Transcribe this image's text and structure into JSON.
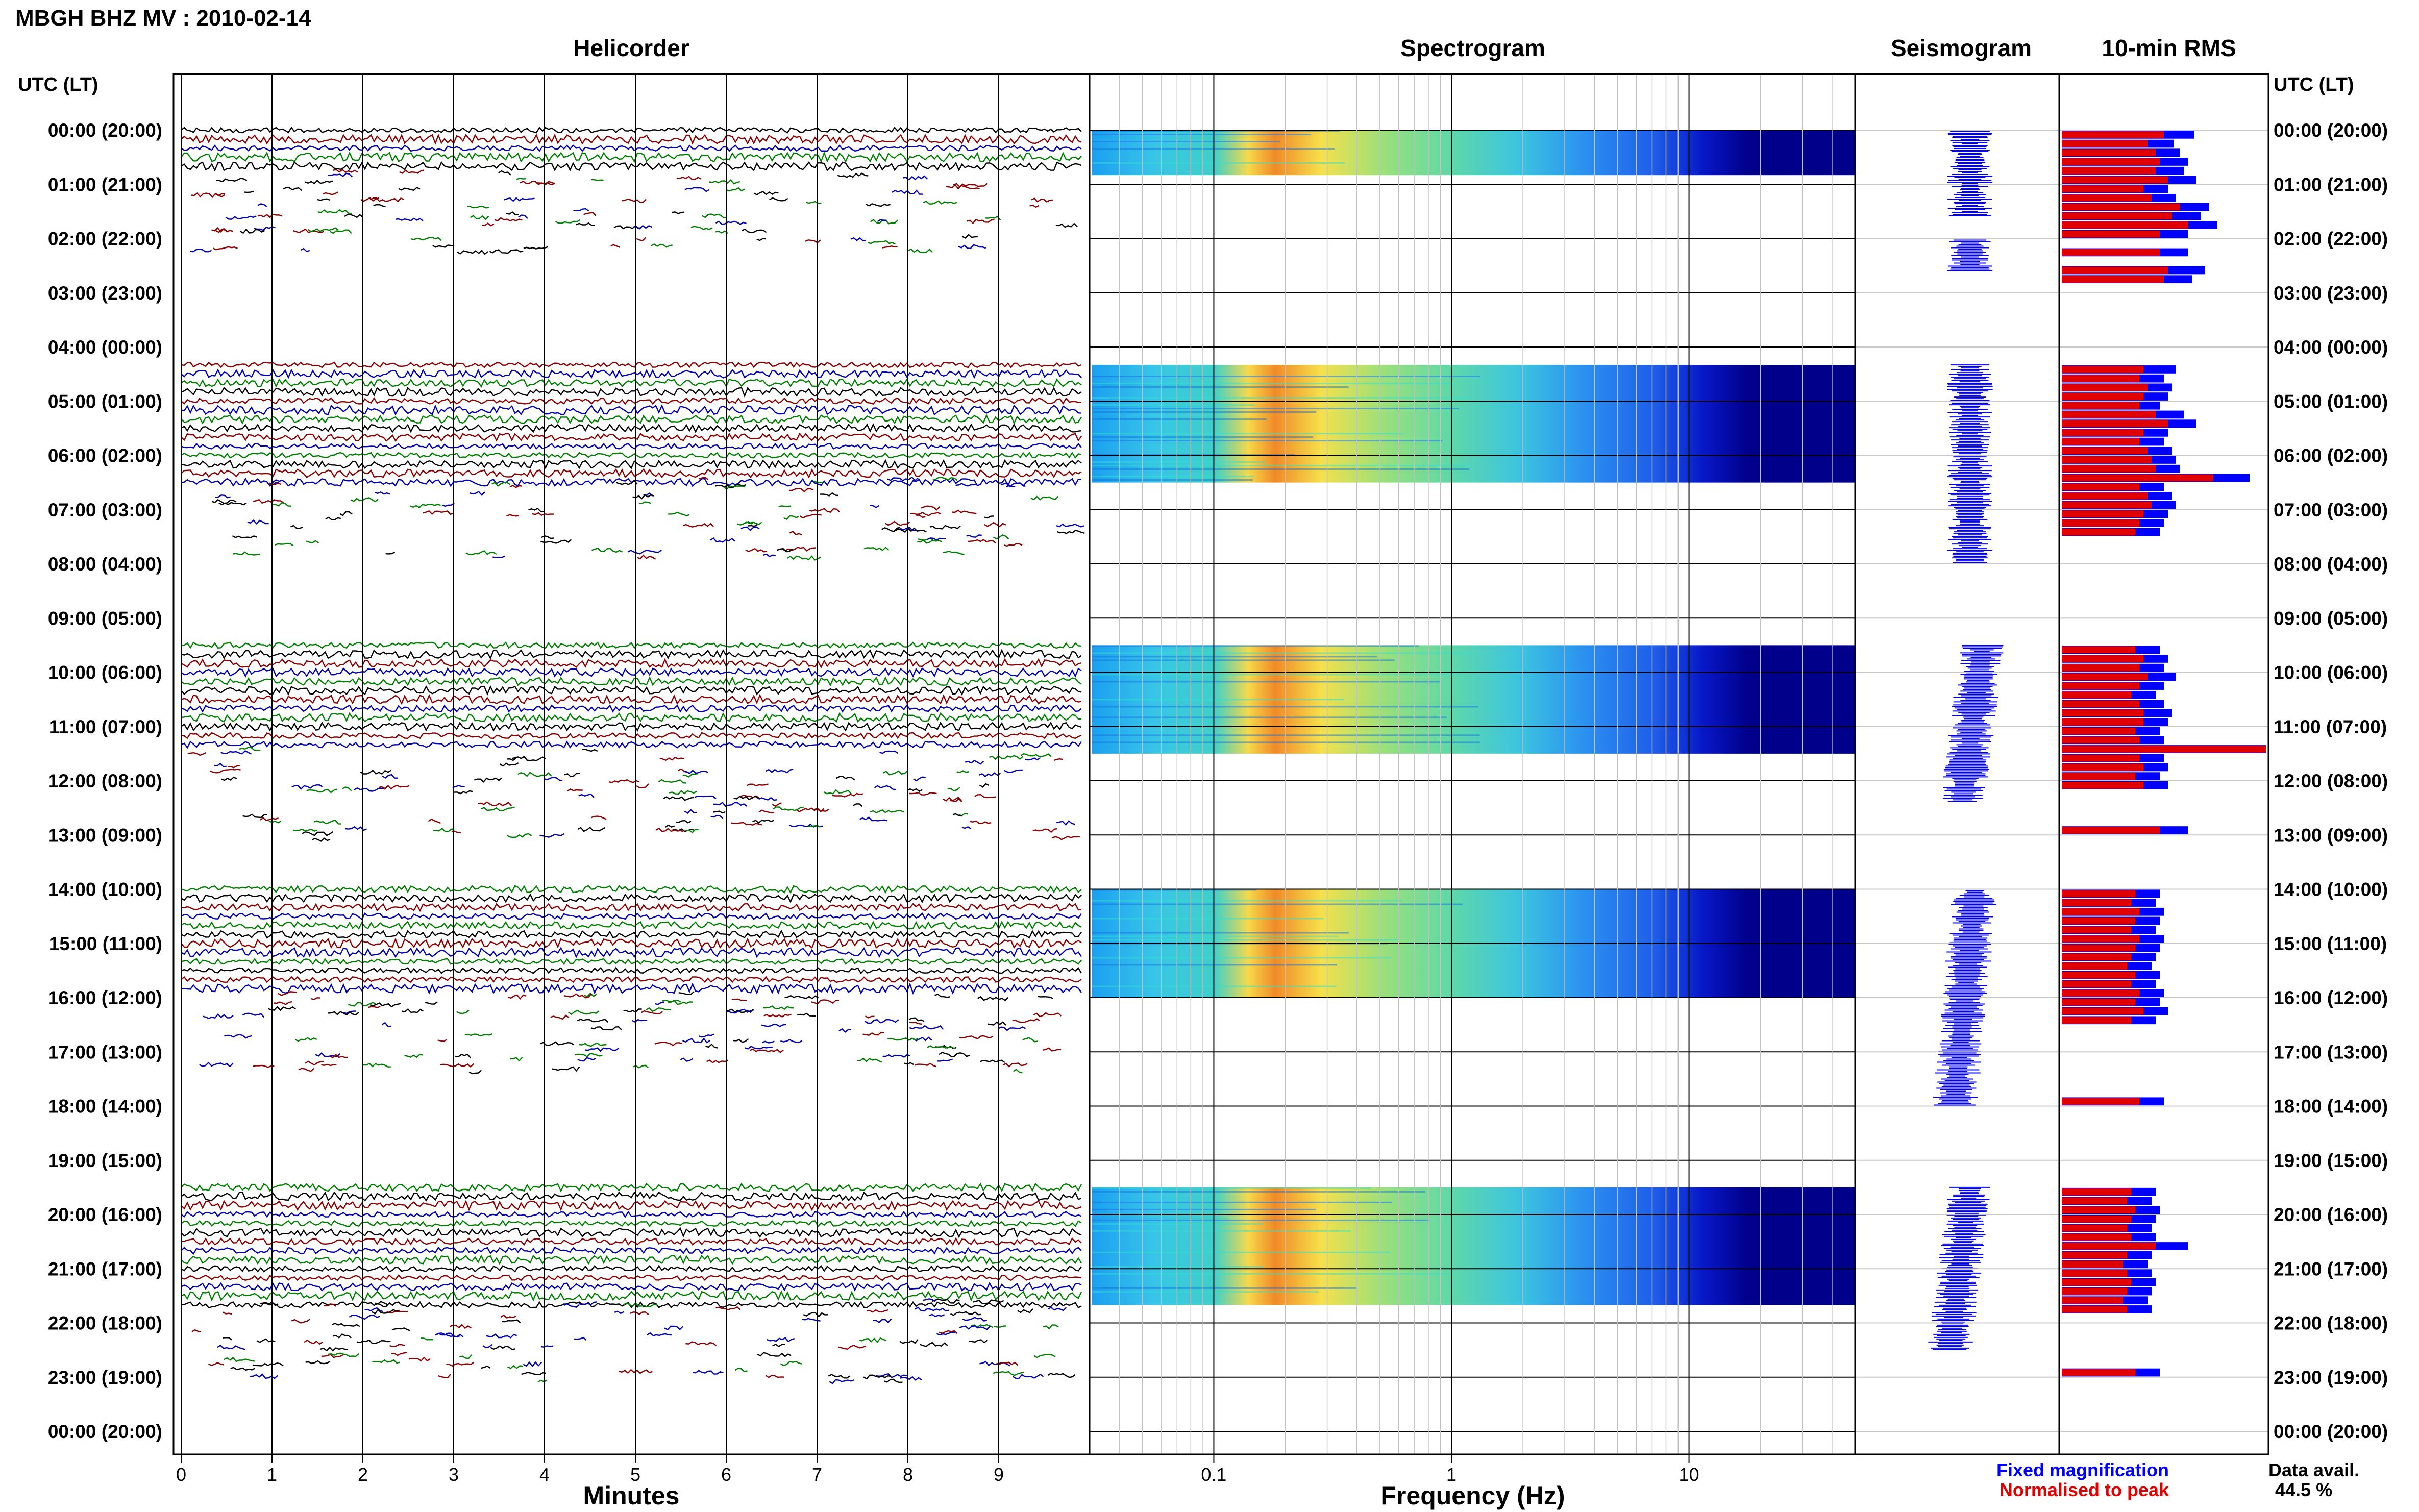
{
  "page_title": "MBGH BHZ MV : 2010-02-14",
  "axis_header_left": "UTC (LT)",
  "axis_header_right": "UTC (LT)",
  "row_labels": [
    "00:00 (20:00)",
    "01:00 (21:00)",
    "02:00 (22:00)",
    "03:00 (23:00)",
    "04:00 (00:00)",
    "05:00 (01:00)",
    "06:00 (02:00)",
    "07:00 (03:00)",
    "08:00 (04:00)",
    "09:00 (05:00)",
    "10:00 (06:00)",
    "11:00 (07:00)",
    "12:00 (08:00)",
    "13:00 (09:00)",
    "14:00 (10:00)",
    "15:00 (11:00)",
    "16:00 (12:00)",
    "17:00 (13:00)",
    "18:00 (14:00)",
    "19:00 (15:00)",
    "20:00 (16:00)",
    "21:00 (17:00)",
    "22:00 (18:00)",
    "23:00 (19:00)",
    "00:00 (20:00)"
  ],
  "panels": {
    "helicorder": {
      "title": "Helicorder",
      "xlabel": "Minutes",
      "ticks": [
        "0",
        "1",
        "2",
        "3",
        "4",
        "5",
        "6",
        "7",
        "8",
        "9"
      ]
    },
    "spectrogram": {
      "title": "Spectrogram",
      "xlabel": "Frequency (Hz)",
      "ticks": [
        "0.1",
        "1",
        "10"
      ]
    },
    "seismogram": {
      "title": "Seismogram"
    },
    "rms": {
      "title": "10-min RMS"
    }
  },
  "legend": {
    "fixed": "Fixed magnification",
    "normalised": "Normalised to peak",
    "avail_label": "Data avail.",
    "avail_value": "44.5 %"
  },
  "colors": {
    "trace_cycle": [
      "#000000",
      "#8b0000",
      "#0000b0",
      "#008000"
    ],
    "fixed": "#0000ff",
    "normalised": "#e00000",
    "spectrogram_floor": "#00008b"
  },
  "chart_data": {
    "type": "helicorder",
    "time_axis": "UTC hours 0-24, 10-minute bins",
    "data_blocks_hours": [
      [
        0,
        0.83
      ],
      [
        4.33,
        6.5
      ],
      [
        9.5,
        11.5
      ],
      [
        14,
        16
      ],
      [
        19.5,
        21.67
      ]
    ],
    "rms_10min": {
      "unit": "relative",
      "blocks": [
        {
          "start_hour": 0.0,
          "fixed": [
            0.65,
            0.55,
            0.58,
            0.62,
            0.6,
            0.66,
            0.52,
            0.56,
            0.72,
            0.68,
            0.76,
            0.62
          ],
          "normalised": [
            0.5,
            0.42,
            0.46,
            0.48,
            0.46,
            0.52,
            0.4,
            0.44,
            0.58,
            0.54,
            0.62,
            0.48
          ]
        },
        {
          "start_hour": 2.17,
          "fixed": [
            0.62
          ],
          "normalised": [
            0.48
          ]
        },
        {
          "start_hour": 2.5,
          "fixed": [
            0.7,
            0.64
          ],
          "normalised": [
            0.52,
            0.5
          ]
        },
        {
          "start_hour": 4.33,
          "fixed": [
            0.56,
            0.5,
            0.54,
            0.52,
            0.48,
            0.6,
            0.66,
            0.52,
            0.5,
            0.54,
            0.56,
            0.58,
            0.92,
            0.5,
            0.54,
            0.56,
            0.52,
            0.5,
            0.48
          ],
          "normalised": [
            0.4,
            0.38,
            0.42,
            0.4,
            0.38,
            0.46,
            0.52,
            0.4,
            0.38,
            0.42,
            0.44,
            0.46,
            0.74,
            0.38,
            0.42,
            0.44,
            0.4,
            0.38,
            0.36
          ]
        },
        {
          "start_hour": 9.5,
          "fixed": [
            0.48,
            0.52,
            0.5,
            0.56,
            0.5,
            0.46,
            0.5,
            0.54,
            0.52,
            0.48,
            0.5,
            1.0,
            0.5,
            0.52,
            0.48,
            0.52
          ],
          "normalised": [
            0.36,
            0.4,
            0.38,
            0.42,
            0.38,
            0.34,
            0.38,
            0.4,
            0.4,
            0.36,
            0.38,
            1.0,
            0.38,
            0.4,
            0.36,
            0.4
          ]
        },
        {
          "start_hour": 12.83,
          "fixed": [
            0.62
          ],
          "normalised": [
            0.48
          ]
        },
        {
          "start_hour": 14.0,
          "fixed": [
            0.48,
            0.46,
            0.5,
            0.48,
            0.46,
            0.5,
            0.48,
            0.46,
            0.44,
            0.48,
            0.46,
            0.5,
            0.48,
            0.52,
            0.46
          ],
          "normalised": [
            0.36,
            0.34,
            0.38,
            0.36,
            0.34,
            0.38,
            0.36,
            0.34,
            0.32,
            0.36,
            0.34,
            0.38,
            0.36,
            0.4,
            0.34
          ]
        },
        {
          "start_hour": 17.83,
          "fixed": [
            0.5
          ],
          "normalised": [
            0.38
          ]
        },
        {
          "start_hour": 19.5,
          "fixed": [
            0.46,
            0.44,
            0.48,
            0.46,
            0.44,
            0.46,
            0.62,
            0.44,
            0.42,
            0.44,
            0.46,
            0.44,
            0.42,
            0.44
          ],
          "normalised": [
            0.34,
            0.32,
            0.36,
            0.34,
            0.32,
            0.34,
            0.46,
            0.32,
            0.3,
            0.32,
            0.34,
            0.32,
            0.3,
            0.32
          ]
        },
        {
          "start_hour": 22.83,
          "fixed": [
            0.48
          ],
          "normalised": [
            0.36
          ]
        }
      ]
    }
  }
}
